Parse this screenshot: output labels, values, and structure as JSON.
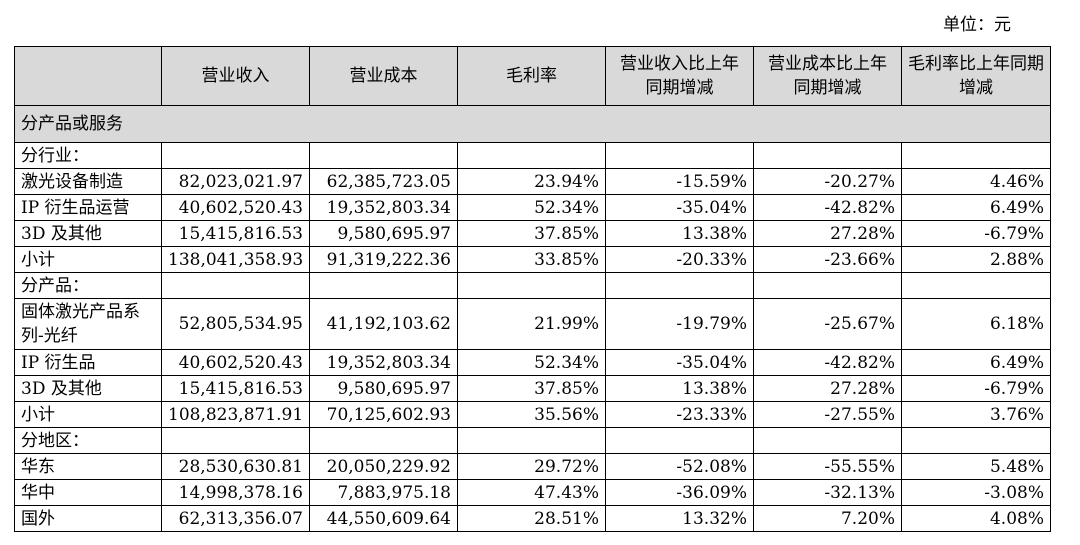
{
  "unit_label": "单位：元",
  "headers": [
    "",
    "营业收入",
    "营业成本",
    "毛利率",
    "营业收入比上年同期增减",
    "营业成本比上年同期增减",
    "毛利率比上年同期增减"
  ],
  "section_title": "分产品或服务",
  "groups": [
    {
      "title": "分行业：",
      "rows": [
        [
          "激光设备制造",
          "82,023,021.97",
          "62,385,723.05",
          "23.94%",
          "-15.59%",
          "-20.27%",
          "4.46%"
        ],
        [
          "IP 衍生品运营",
          "40,602,520.43",
          "19,352,803.34",
          "52.34%",
          "-35.04%",
          "-42.82%",
          "6.49%"
        ],
        [
          "3D 及其他",
          "15,415,816.53",
          "9,580,695.97",
          "37.85%",
          "13.38%",
          "27.28%",
          "-6.79%"
        ],
        [
          "小计",
          "138,041,358.93",
          "91,319,222.36",
          "33.85%",
          "-20.33%",
          "-23.66%",
          "2.88%"
        ]
      ]
    },
    {
      "title": "分产品：",
      "rows": [
        [
          "固体激光产品系列-光纤",
          "52,805,534.95",
          "41,192,103.62",
          "21.99%",
          "-19.79%",
          "-25.67%",
          "6.18%"
        ],
        [
          "IP 衍生品",
          "40,602,520.43",
          "19,352,803.34",
          "52.34%",
          "-35.04%",
          "-42.82%",
          "6.49%"
        ],
        [
          "3D 及其他",
          "15,415,816.53",
          "9,580,695.97",
          "37.85%",
          "13.38%",
          "27.28%",
          "-6.79%"
        ],
        [
          "小计",
          "108,823,871.91",
          "70,125,602.93",
          "35.56%",
          "-23.33%",
          "-27.55%",
          "3.76%"
        ]
      ]
    },
    {
      "title": "分地区：",
      "rows": [
        [
          "华东",
          "28,530,630.81",
          "20,050,229.92",
          "29.72%",
          "-52.08%",
          "-55.55%",
          "5.48%"
        ],
        [
          "华中",
          "14,998,378.16",
          "7,883,975.18",
          "47.43%",
          "-36.09%",
          "-32.13%",
          "-3.08%"
        ],
        [
          "国外",
          "62,313,356.07",
          "44,550,609.64",
          "28.51%",
          "13.32%",
          "7.20%",
          "4.08%"
        ]
      ]
    }
  ]
}
